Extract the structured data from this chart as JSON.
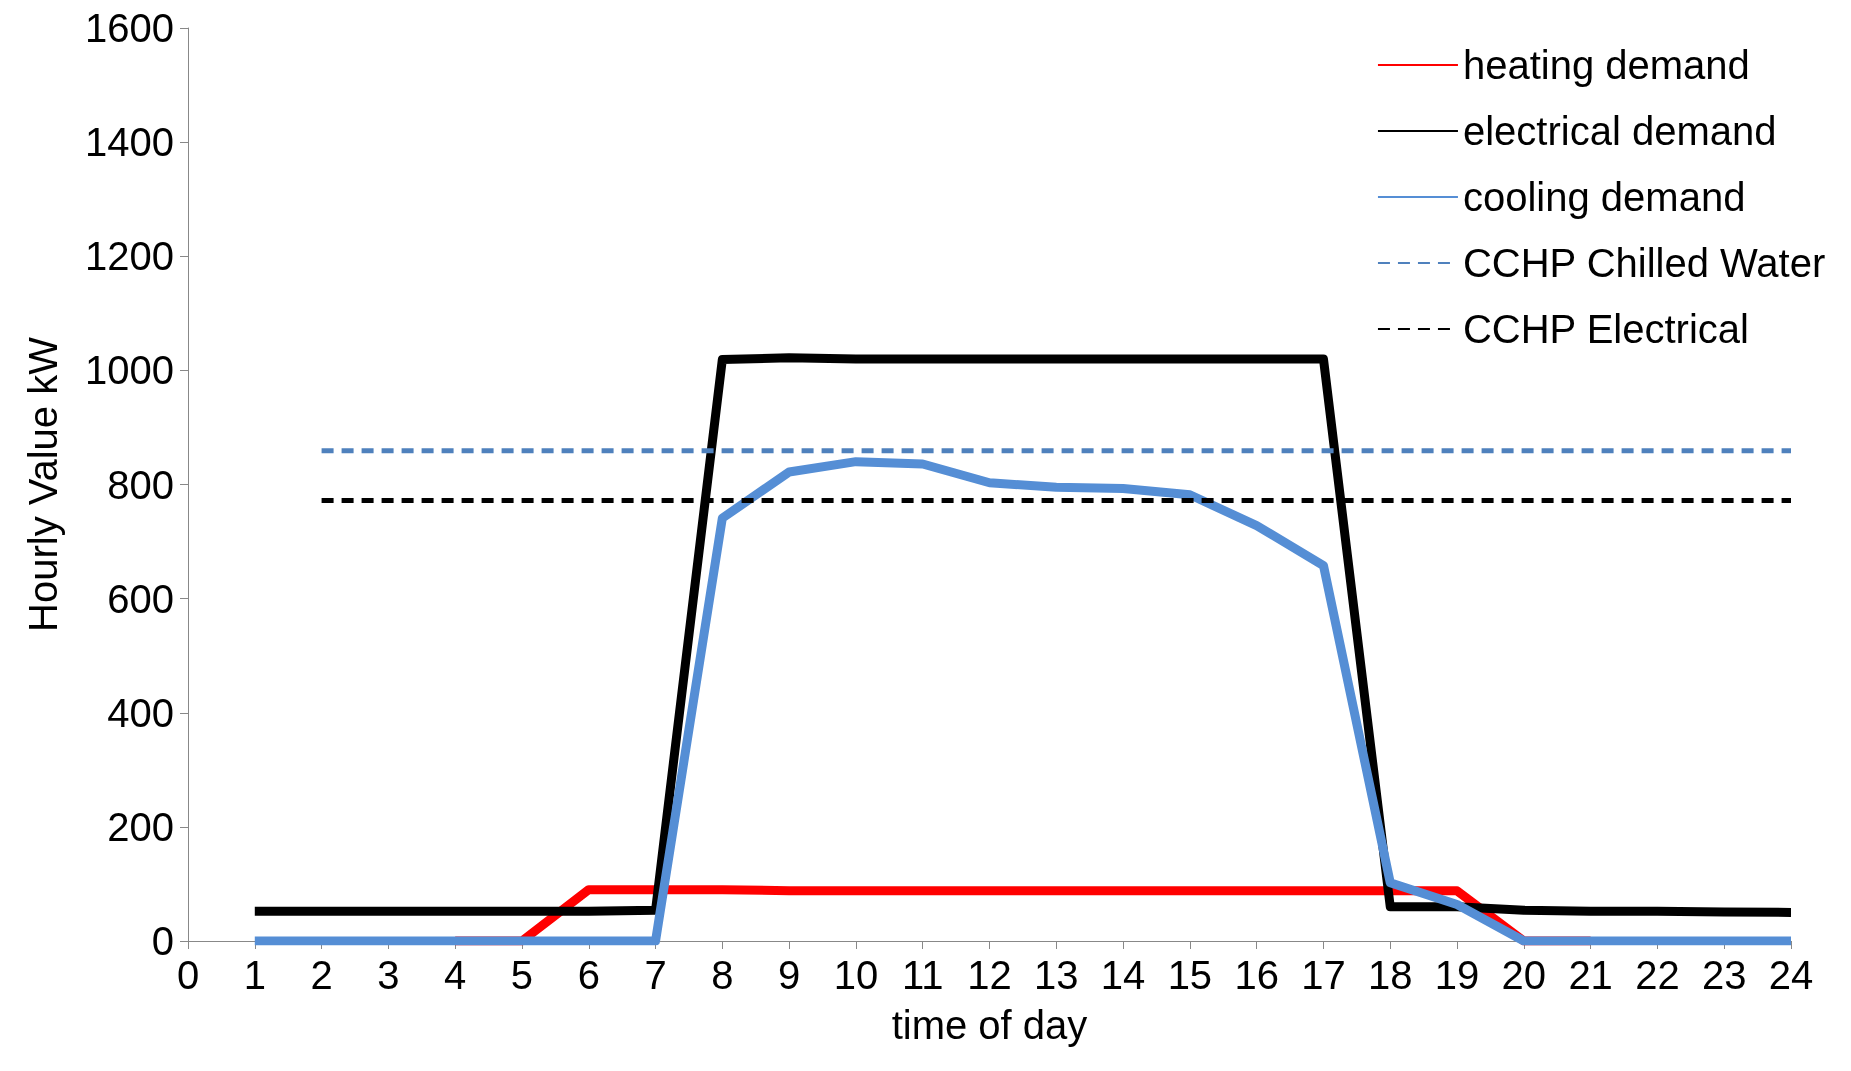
{
  "chart_data": {
    "type": "line",
    "xlabel": "time of day",
    "ylabel": "Hourly Value kW",
    "xlim": [
      0,
      24
    ],
    "xticks": [
      0,
      1,
      2,
      3,
      4,
      5,
      6,
      7,
      8,
      9,
      10,
      11,
      12,
      13,
      14,
      15,
      16,
      17,
      18,
      19,
      20,
      21,
      22,
      23,
      24
    ],
    "ylim": [
      0,
      1600
    ],
    "yticks": [
      0,
      200,
      400,
      600,
      800,
      1000,
      1200,
      1400,
      1600
    ],
    "x": [
      1,
      2,
      3,
      4,
      5,
      6,
      7,
      8,
      9,
      10,
      11,
      12,
      13,
      14,
      15,
      16,
      17,
      18,
      19,
      20,
      21,
      22,
      23,
      24
    ],
    "grid": false,
    "legend": "top right",
    "marker": "none",
    "series": [
      {
        "name": "heating demand",
        "color": "#ff0000",
        "line_style": "solid",
        "values": [
          null,
          null,
          null,
          0,
          0,
          90,
          90,
          90,
          88,
          88,
          88,
          88,
          88,
          88,
          88,
          88,
          88,
          88,
          88,
          0,
          0,
          null,
          null,
          null
        ]
      },
      {
        "name": "electrical demand",
        "color": "#000000",
        "line_style": "solid",
        "values": [
          52,
          52,
          52,
          52,
          52,
          52,
          54,
          1019,
          1022,
          1020,
          1020,
          1020,
          1020,
          1020,
          1020,
          1020,
          1020,
          60,
          60,
          54,
          52,
          52,
          51,
          50
        ]
      },
      {
        "name": "cooling demand",
        "color": "#558ed5",
        "line_style": "solid",
        "values": [
          0,
          0,
          0,
          0,
          0,
          0,
          0,
          741,
          822,
          840,
          836,
          803,
          795,
          793,
          782,
          728,
          658,
          102,
          64,
          0,
          0,
          0,
          0,
          0
        ]
      },
      {
        "name": "CCHP Chilled Water",
        "color": "#4f81bd",
        "line_style": "dashed",
        "values": [
          null,
          859,
          859,
          859,
          859,
          859,
          859,
          859,
          859,
          859,
          859,
          859,
          859,
          859,
          859,
          859,
          859,
          859,
          859,
          859,
          859,
          859,
          859,
          859
        ]
      },
      {
        "name": "CCHP Electrical",
        "color": "#000000",
        "line_style": "dashed",
        "values": [
          null,
          772,
          772,
          772,
          772,
          772,
          772,
          772,
          772,
          772,
          772,
          772,
          772,
          772,
          772,
          772,
          772,
          772,
          772,
          772,
          772,
          772,
          772,
          772
        ]
      }
    ]
  }
}
